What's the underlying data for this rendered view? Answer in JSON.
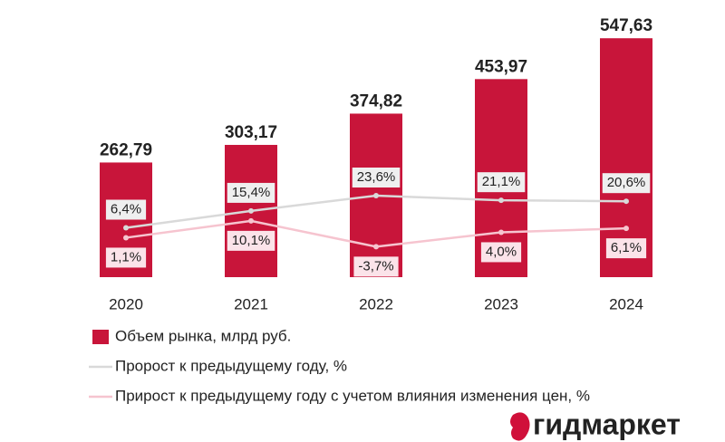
{
  "chart_data": {
    "type": "bar",
    "categories": [
      "2020",
      "2021",
      "2022",
      "2023",
      "2024"
    ],
    "ylim": [
      0,
      600
    ],
    "y2lim": [
      -20,
      120
    ],
    "series": [
      {
        "name": "Объем рынка, млрд руб.",
        "type": "bar",
        "color": "#c8153a",
        "values": [
          262.79,
          303.17,
          374.82,
          453.97,
          547.63
        ],
        "value_labels": [
          "262,79",
          "303,17",
          "374,82",
          "453,97",
          "547,63"
        ]
      },
      {
        "name": "Пророст к предыдущему году, %",
        "type": "line",
        "axis": "y2",
        "color": "#d9d9d9",
        "values": [
          6.4,
          15.4,
          23.6,
          21.1,
          20.6
        ],
        "value_labels": [
          "6,4%",
          "15,4%",
          "23,6%",
          "21,1%",
          "20,6%"
        ]
      },
      {
        "name": "Прирост к предыдущему году с учетом влияния изменения цен, %",
        "type": "line",
        "axis": "y2",
        "color": "#f6c4cf",
        "values": [
          1.1,
          10.1,
          -3.7,
          4.0,
          6.1
        ],
        "value_labels": [
          "1,1%",
          "10,1%",
          "-3,7%",
          "4,0%",
          "6,1%"
        ]
      }
    ]
  },
  "logo": "гидмаркет"
}
